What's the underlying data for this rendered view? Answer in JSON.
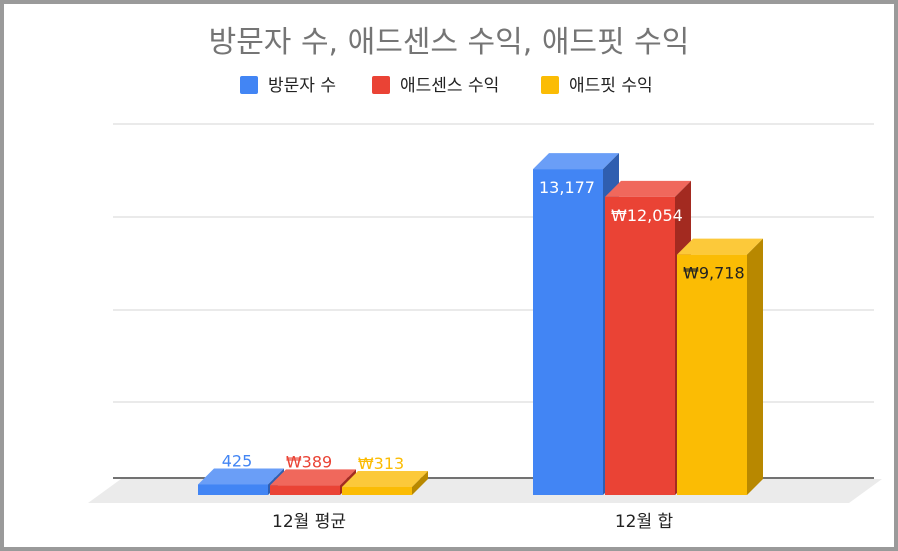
{
  "chart_data": {
    "type": "bar",
    "title": "방문자 수, 애드센스 수익, 애드핏 수익",
    "categories": [
      "12월 평균",
      "12월 합"
    ],
    "series": [
      {
        "name": "방문자 수",
        "values": [
          425,
          13177
        ],
        "labels": [
          "425",
          "13,177"
        ],
        "color": "#4285f4",
        "side": "#2f5eb0",
        "top": "#6a9ef7"
      },
      {
        "name": "애드센스 수익",
        "values": [
          389,
          12054
        ],
        "labels": [
          "₩389",
          "₩12,054"
        ],
        "color": "#ea4335",
        "side": "#a32a20",
        "top": "#f0685c"
      },
      {
        "name": "애드핏 수익",
        "values": [
          313,
          9718
        ],
        "labels": [
          "₩313",
          "₩9,718"
        ],
        "color": "#fbbc04",
        "side": "#b88800",
        "top": "#fcc93a"
      }
    ],
    "ylim": [
      0,
      15000
    ],
    "grid": true,
    "legend": "top",
    "style": "3d"
  }
}
